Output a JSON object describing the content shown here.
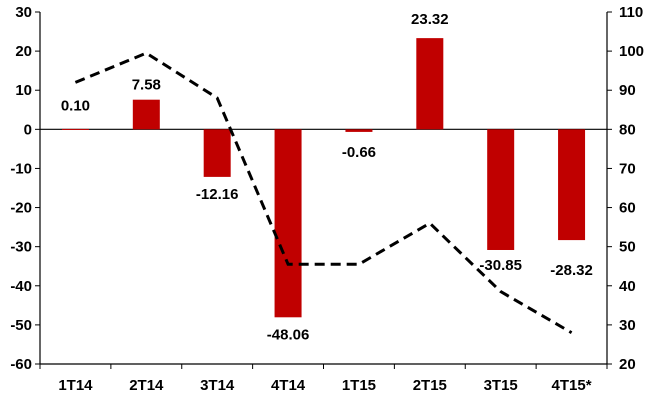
{
  "chart_data": {
    "type": "bar",
    "categories": [
      "1T14",
      "2T14",
      "3T14",
      "4T14",
      "1T15",
      "2T15",
      "3T15",
      "4T15*"
    ],
    "series": [
      {
        "type": "bar",
        "axis": "left",
        "values": [
          0.1,
          7.58,
          -12.16,
          -48.06,
          -0.66,
          23.32,
          -30.85,
          -28.32
        ],
        "data_labels": [
          "0.10",
          "7.58",
          "-12.16",
          "-48.06",
          "-0.66",
          "23.32",
          "-30.85",
          "-28.32"
        ],
        "color": "#c00000"
      },
      {
        "type": "line",
        "axis": "right",
        "style": "dashed",
        "values": [
          92,
          99.5,
          88,
          45.5,
          45.5,
          56,
          38.5,
          28
        ],
        "color": "#000000"
      }
    ],
    "y_left": {
      "min": -60,
      "max": 30,
      "ticks": [
        30,
        20,
        10,
        0,
        -10,
        -20,
        -30,
        -40,
        -50,
        -60
      ]
    },
    "y_right": {
      "min": 20,
      "max": 110,
      "ticks": [
        110,
        100,
        90,
        80,
        70,
        60,
        50,
        40,
        30,
        20
      ]
    },
    "grid": false,
    "legend": "none"
  }
}
